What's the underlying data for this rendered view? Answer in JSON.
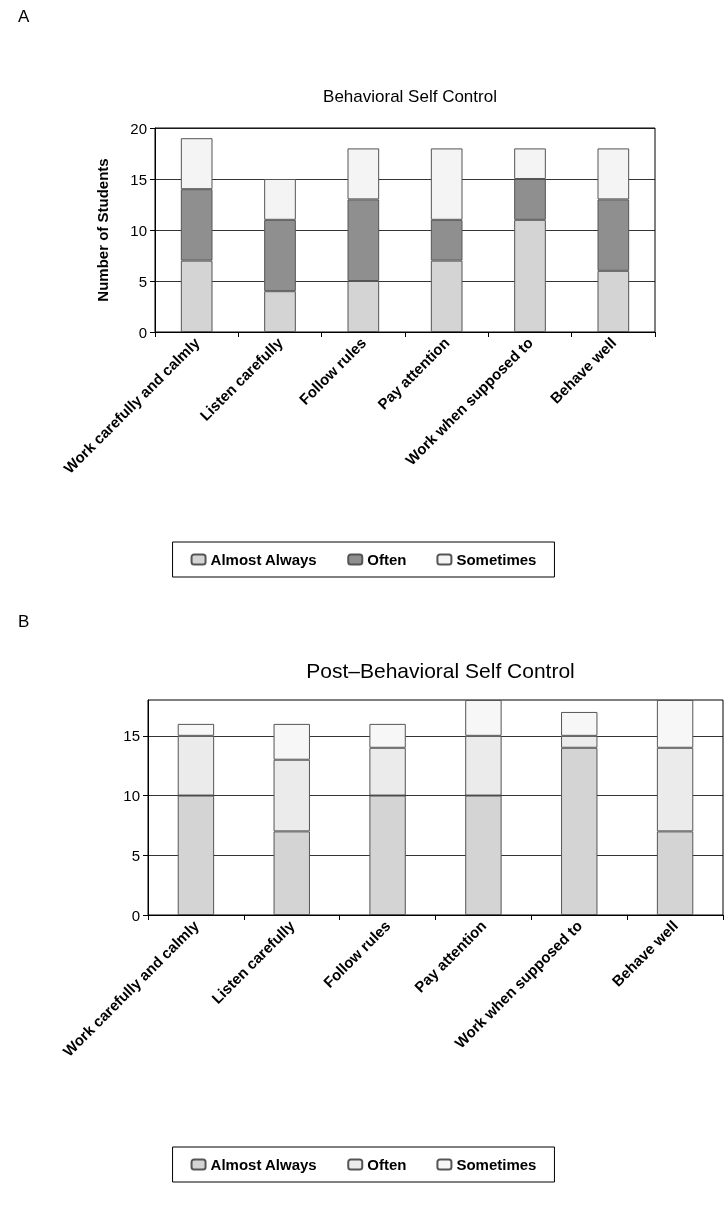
{
  "chart_data": [
    {
      "type": "bar",
      "title": "Behavioral Self Control",
      "ylabel": "Number of Students",
      "annotations": [
        "A"
      ],
      "stacked": true,
      "categories": [
        "Work carefully and calmly",
        "Listen carefully",
        "Follow rules",
        "Pay attention",
        "Work when supposed to",
        "Behave well"
      ],
      "series": [
        {
          "name": "Almost Always",
          "color": "#d4d4d4",
          "values": [
            7,
            4,
            5,
            7,
            11,
            6
          ]
        },
        {
          "name": "Often",
          "color": "#8f8f8f",
          "values": [
            7,
            7,
            8,
            4,
            4,
            7
          ]
        },
        {
          "name": "Sometimes",
          "color": "#f4f4f4",
          "values": [
            5,
            4,
            5,
            7,
            3,
            5
          ]
        }
      ],
      "ylim": [
        0,
        20
      ],
      "yticks": [
        0,
        5,
        10,
        15,
        20
      ],
      "grid": "y",
      "legend": "bottom"
    },
    {
      "type": "bar",
      "title": "Post–Behavioral Self Control",
      "annotations": [
        "B"
      ],
      "stacked": true,
      "categories": [
        "Work carefully and calmly",
        "Listen carefully",
        "Follow rules",
        "Pay attention",
        "Work when supposed to",
        "Behave well"
      ],
      "series": [
        {
          "name": "Almost Always",
          "color": "#d4d4d4",
          "values": [
            10,
            7,
            10,
            10,
            14,
            7
          ]
        },
        {
          "name": "Often",
          "color": "#ebebeb",
          "values": [
            5,
            6,
            4,
            5,
            1,
            7
          ]
        },
        {
          "name": "Sometimes",
          "color": "#f7f7f7",
          "values": [
            1,
            3,
            2,
            3,
            2,
            4
          ]
        }
      ],
      "ylim": [
        0,
        18
      ],
      "yticks": [
        0,
        5,
        10,
        15
      ],
      "grid": "y",
      "legend": "bottom"
    }
  ]
}
